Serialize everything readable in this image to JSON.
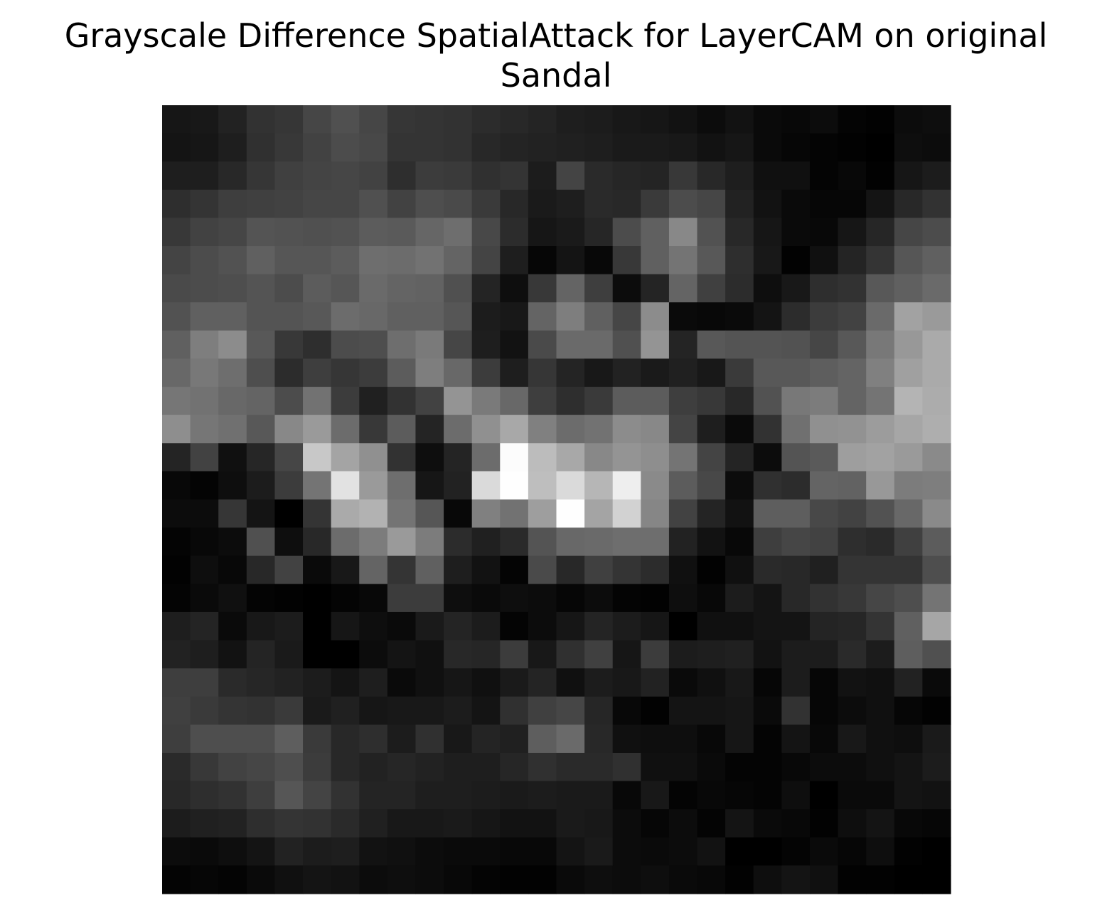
{
  "chart_data": {
    "type": "heatmap",
    "title_lines": [
      "Grayscale Difference SpatialAttack for LayerCAM on original",
      "Sandal"
    ],
    "xlabel": "",
    "ylabel": "",
    "axes_visible": false,
    "grid": false,
    "colormap": "gray",
    "value_range": [
      0,
      255
    ],
    "rows": 28,
    "cols": 28,
    "values": [
      [
        22,
        24,
        34,
        50,
        54,
        70,
        80,
        70,
        54,
        52,
        50,
        44,
        40,
        36,
        30,
        28,
        24,
        22,
        18,
        12,
        18,
        10,
        8,
        12,
        4,
        2,
        12,
        14
      ],
      [
        20,
        22,
        30,
        48,
        56,
        66,
        76,
        72,
        52,
        52,
        50,
        40,
        36,
        34,
        32,
        30,
        26,
        26,
        24,
        18,
        22,
        10,
        6,
        4,
        2,
        0,
        14,
        12
      ],
      [
        30,
        30,
        40,
        54,
        64,
        68,
        70,
        66,
        46,
        60,
        58,
        48,
        52,
        28,
        68,
        42,
        38,
        36,
        56,
        40,
        30,
        16,
        16,
        4,
        8,
        2,
        22,
        28
      ],
      [
        46,
        52,
        62,
        64,
        66,
        70,
        70,
        80,
        66,
        78,
        74,
        58,
        40,
        26,
        30,
        42,
        40,
        58,
        76,
        70,
        34,
        18,
        10,
        6,
        6,
        20,
        40,
        50
      ],
      [
        56,
        66,
        70,
        84,
        82,
        80,
        82,
        92,
        90,
        102,
        110,
        72,
        44,
        22,
        26,
        38,
        76,
        96,
        136,
        82,
        40,
        22,
        10,
        8,
        22,
        38,
        70,
        76
      ],
      [
        68,
        76,
        82,
        96,
        86,
        86,
        92,
        110,
        108,
        114,
        100,
        68,
        30,
        6,
        20,
        8,
        56,
        96,
        116,
        88,
        46,
        24,
        2,
        16,
        36,
        52,
        86,
        96
      ],
      [
        74,
        76,
        78,
        84,
        76,
        92,
        86,
        106,
        100,
        98,
        80,
        36,
        14,
        56,
        100,
        62,
        12,
        36,
        100,
        64,
        44,
        14,
        24,
        46,
        50,
        88,
        96,
        106
      ],
      [
        82,
        96,
        96,
        84,
        84,
        88,
        108,
        104,
        96,
        96,
        86,
        28,
        24,
        100,
        126,
        96,
        70,
        140,
        10,
        8,
        10,
        20,
        44,
        60,
        66,
        106,
        162,
        154
      ],
      [
        96,
        126,
        140,
        88,
        56,
        46,
        76,
        78,
        110,
        122,
        70,
        30,
        18,
        74,
        106,
        106,
        80,
        148,
        36,
        88,
        84,
        84,
        82,
        70,
        88,
        120,
        152,
        170
      ],
      [
        104,
        120,
        110,
        78,
        44,
        62,
        54,
        60,
        92,
        126,
        104,
        60,
        30,
        54,
        36,
        24,
        34,
        26,
        32,
        24,
        58,
        88,
        88,
        94,
        100,
        128,
        160,
        170
      ],
      [
        118,
        114,
        104,
        100,
        76,
        114,
        60,
        32,
        50,
        66,
        148,
        122,
        104,
        62,
        46,
        58,
        92,
        92,
        62,
        56,
        40,
        82,
        120,
        124,
        100,
        116,
        180,
        172
      ],
      [
        142,
        118,
        112,
        88,
        136,
        154,
        108,
        56,
        92,
        36,
        108,
        144,
        168,
        128,
        108,
        114,
        140,
        136,
        68,
        30,
        10,
        50,
        112,
        144,
        146,
        156,
        166,
        174
      ],
      [
        36,
        66,
        16,
        38,
        70,
        200,
        164,
        144,
        50,
        14,
        36,
        108,
        252,
        188,
        168,
        136,
        148,
        142,
        116,
        68,
        36,
        12,
        84,
        90,
        158,
        162,
        154,
        138
      ],
      [
        8,
        4,
        14,
        28,
        60,
        116,
        226,
        154,
        110,
        22,
        34,
        218,
        254,
        190,
        218,
        182,
        238,
        138,
        92,
        72,
        12,
        48,
        44,
        100,
        98,
        152,
        124,
        126
      ],
      [
        12,
        12,
        54,
        20,
        0,
        52,
        170,
        178,
        116,
        86,
        8,
        128,
        114,
        158,
        254,
        164,
        210,
        134,
        66,
        36,
        18,
        94,
        94,
        72,
        66,
        82,
        104,
        138
      ],
      [
        4,
        8,
        12,
        80,
        14,
        40,
        108,
        124,
        154,
        124,
        44,
        32,
        42,
        84,
        104,
        106,
        110,
        110,
        34,
        18,
        8,
        62,
        70,
        66,
        46,
        42,
        64,
        92
      ],
      [
        2,
        14,
        8,
        40,
        66,
        10,
        24,
        100,
        52,
        96,
        30,
        18,
        4,
        74,
        40,
        64,
        52,
        44,
        16,
        2,
        16,
        42,
        40,
        32,
        52,
        52,
        52,
        78
      ],
      [
        4,
        10,
        16,
        4,
        2,
        0,
        4,
        8,
        60,
        60,
        14,
        10,
        14,
        12,
        6,
        12,
        4,
        2,
        14,
        8,
        28,
        20,
        40,
        50,
        56,
        70,
        78,
        116
      ],
      [
        30,
        36,
        10,
        24,
        28,
        0,
        22,
        14,
        10,
        26,
        36,
        28,
        4,
        12,
        22,
        36,
        28,
        22,
        0,
        16,
        16,
        20,
        20,
        36,
        38,
        52,
        96,
        166
      ],
      [
        34,
        30,
        18,
        36,
        26,
        0,
        0,
        12,
        20,
        16,
        40,
        38,
        60,
        24,
        48,
        64,
        22,
        60,
        28,
        30,
        32,
        18,
        28,
        28,
        42,
        28,
        94,
        80
      ],
      [
        62,
        62,
        42,
        38,
        34,
        28,
        20,
        30,
        10,
        16,
        22,
        16,
        26,
        36,
        16,
        28,
        24,
        34,
        10,
        16,
        24,
        6,
        28,
        6,
        18,
        16,
        34,
        10
      ],
      [
        64,
        58,
        52,
        50,
        58,
        26,
        32,
        22,
        24,
        24,
        28,
        20,
        48,
        64,
        70,
        38,
        8,
        2,
        20,
        20,
        22,
        10,
        50,
        6,
        12,
        16,
        6,
        2
      ],
      [
        62,
        78,
        78,
        78,
        94,
        58,
        40,
        46,
        28,
        48,
        24,
        36,
        32,
        94,
        106,
        40,
        16,
        14,
        14,
        8,
        22,
        4,
        20,
        8,
        24,
        16,
        14,
        26
      ],
      [
        42,
        56,
        66,
        70,
        78,
        60,
        40,
        34,
        38,
        34,
        30,
        30,
        38,
        48,
        42,
        42,
        48,
        16,
        16,
        10,
        4,
        4,
        8,
        12,
        12,
        16,
        20,
        28
      ],
      [
        40,
        46,
        50,
        62,
        86,
        68,
        50,
        36,
        36,
        30,
        30,
        28,
        26,
        28,
        26,
        26,
        8,
        24,
        4,
        8,
        6,
        4,
        14,
        0,
        10,
        10,
        20,
        18
      ],
      [
        28,
        32,
        34,
        46,
        52,
        50,
        42,
        32,
        24,
        24,
        26,
        22,
        18,
        18,
        26,
        24,
        12,
        6,
        12,
        4,
        20,
        10,
        8,
        2,
        14,
        20,
        8,
        6
      ],
      [
        12,
        10,
        14,
        20,
        34,
        28,
        30,
        18,
        16,
        12,
        10,
        10,
        8,
        8,
        20,
        26,
        12,
        10,
        12,
        18,
        0,
        0,
        4,
        10,
        6,
        14,
        2,
        0
      ],
      [
        4,
        6,
        4,
        10,
        16,
        20,
        18,
        12,
        14,
        12,
        8,
        4,
        2,
        2,
        10,
        14,
        12,
        14,
        10,
        8,
        2,
        14,
        20,
        16,
        2,
        2,
        0,
        0
      ]
    ]
  }
}
